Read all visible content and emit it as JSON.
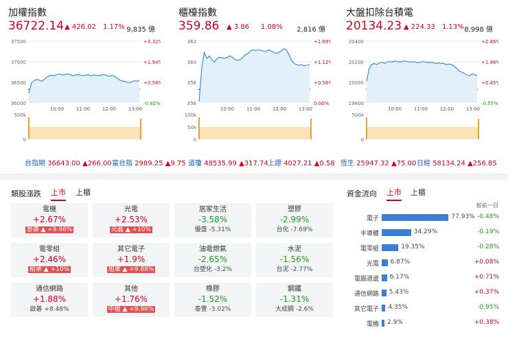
{
  "panels": [
    {
      "title": "加權指數",
      "price": "36722.14",
      "change": "▲ 426.02",
      "pct": "1.17%",
      "volume": "9,835 億",
      "left_ticks": [
        "37500",
        "37000",
        "36500",
        "36000"
      ],
      "right_ticks": [
        "+3.32%",
        "+1.94%",
        "+0.56%",
        "-0.82%"
      ],
      "time_ticks": [
        "10:00",
        "11:00",
        "12:00",
        "13:00"
      ],
      "vol_ticks": [
        "500k",
        "0"
      ],
      "line": [
        0.16,
        0.32,
        0.36,
        0.38,
        0.37,
        0.35,
        0.38,
        0.42,
        0.44,
        0.45,
        0.44,
        0.46,
        0.47,
        0.45,
        0.46,
        0.47,
        0.46,
        0.44,
        0.45,
        0.46,
        0.45,
        0.44,
        0.45,
        0.46,
        0.44,
        0.45,
        0.45,
        0.44,
        0.45,
        0.46,
        0.45,
        0.43,
        0.44,
        0.44,
        0.41,
        0.38,
        0.36,
        0.35,
        0.34,
        0.33,
        0.34,
        0.36,
        0.35,
        0.37
      ]
    },
    {
      "title": "櫃檯指數",
      "price": "359.86",
      "change": "▲ 3.86",
      "pct": "1.08%",
      "volume": "2,816 億",
      "left_ticks": [
        "362",
        "360",
        "358",
        "356"
      ],
      "right_ticks": [
        "+1.69%",
        "+1.12%",
        "+0.56%",
        "0.00%"
      ],
      "time_ticks": [
        "10:00",
        "11:00",
        "12:00",
        "13:00"
      ],
      "vol_ticks": [
        "100k",
        "50k",
        "0"
      ],
      "line": [
        0.02,
        0.55,
        0.82,
        0.72,
        0.76,
        0.7,
        0.66,
        0.72,
        0.74,
        0.73,
        0.72,
        0.74,
        0.76,
        0.74,
        0.7,
        0.69,
        0.7,
        0.74,
        0.78,
        0.8,
        0.84,
        0.86,
        0.85,
        0.86,
        0.85,
        0.84,
        0.83,
        0.86,
        0.84,
        0.82,
        0.8,
        0.82,
        0.84,
        0.88,
        0.86,
        0.78,
        0.68,
        0.64,
        0.62,
        0.61,
        0.62,
        0.6,
        0.61,
        0.62
      ]
    },
    {
      "title": "大盤扣除台積電",
      "price": "20134.23",
      "change": "▲ 224.33",
      "pct": "1.13%",
      "volume": "8,998 億",
      "left_ticks": [
        "20400",
        "20200",
        "20000",
        "19800"
      ],
      "right_ticks": [
        "+2.46%",
        "+1.46%",
        "+0.45%",
        "-0.55%"
      ],
      "time_ticks": [
        "10:00",
        "11:00",
        "12:00",
        "13:00"
      ],
      "vol_ticks": [
        "500k",
        "0"
      ],
      "line": [
        0.35,
        0.56,
        0.62,
        0.64,
        0.62,
        0.65,
        0.66,
        0.64,
        0.66,
        0.67,
        0.66,
        0.68,
        0.67,
        0.66,
        0.67,
        0.68,
        0.67,
        0.66,
        0.67,
        0.66,
        0.65,
        0.66,
        0.67,
        0.66,
        0.65,
        0.66,
        0.65,
        0.64,
        0.65,
        0.64,
        0.64,
        0.62,
        0.63,
        0.62,
        0.6,
        0.56,
        0.52,
        0.5,
        0.48,
        0.45,
        0.44,
        0.47,
        0.46,
        0.44
      ]
    }
  ],
  "ticker": [
    {
      "name": "台指期",
      "value": "36643.00 ▲266.00"
    },
    {
      "name": "富台指",
      "value": "2989.25 ▲9.75"
    },
    {
      "name": "道瓊",
      "value": "48535.99 ▲317.74"
    },
    {
      "name": "上證",
      "value": "4027.21 ▲0.58"
    },
    {
      "name": "恆生",
      "value": "25947.32 ▲75.00"
    },
    {
      "name": "日經",
      "value": "58134.24 ▲256.85"
    }
  ],
  "sectors": {
    "heading": "類股漲跌",
    "tabs": [
      "上市",
      "上櫃"
    ],
    "tiles": [
      {
        "name": "電機",
        "pct": "+2.67%",
        "stock": "恩德",
        "spct": "▲ +9.96%",
        "dir": "up",
        "badge": true
      },
      {
        "name": "光電",
        "pct": "+2.53%",
        "stock": "元晶",
        "spct": "▲ +10%",
        "dir": "up",
        "badge": true
      },
      {
        "name": "居家生活",
        "pct": "-3.58%",
        "stock": "優盛",
        "spct": "-5.31%",
        "dir": "down",
        "badge": false
      },
      {
        "name": "塑膠",
        "pct": "-2.99%",
        "stock": "台化",
        "spct": "-7.69%",
        "dir": "down",
        "badge": false
      },
      {
        "name": "電零組",
        "pct": "+2.46%",
        "stock": "柏承",
        "spct": "▲ +10%",
        "dir": "up",
        "badge": true
      },
      {
        "name": "其它電子",
        "pct": "+1.9%",
        "stock": "旭軍",
        "spct": "▲ +9.88%",
        "dir": "up",
        "badge": true
      },
      {
        "name": "油電燃氣",
        "pct": "-2.65%",
        "stock": "台塑化",
        "spct": "-3.2%",
        "dir": "down",
        "badge": false
      },
      {
        "name": "水泥",
        "pct": "-1.56%",
        "stock": "台泥",
        "spct": "-2.77%",
        "dir": "down",
        "badge": false
      },
      {
        "name": "通信網路",
        "pct": "+1.88%",
        "stock": "啟碁",
        "spct": "+8.48%",
        "dir": "up",
        "badge": false
      },
      {
        "name": "其他",
        "pct": "+1.76%",
        "stock": "中租",
        "spct": "▲ +9.96%",
        "dir": "up",
        "badge": true
      },
      {
        "name": "橡膠",
        "pct": "-1.52%",
        "stock": "泰豐",
        "spct": "-3.02%",
        "dir": "down",
        "badge": false
      },
      {
        "name": "鋼鐵",
        "pct": "-1.31%",
        "stock": "大成鋼",
        "spct": "-2.6%",
        "dir": "down",
        "badge": false
      }
    ]
  },
  "flow": {
    "heading": "資金流向",
    "tabs": [
      "上市",
      "上櫃"
    ],
    "col_header": "較前一日",
    "rows": [
      {
        "name": "電子",
        "share": "77.93%",
        "value": 77.93,
        "change": "-0.48%",
        "dir": "down"
      },
      {
        "name": "半導體",
        "share": "34.29%",
        "value": 34.29,
        "change": "-0.19%",
        "dir": "down"
      },
      {
        "name": "電零組",
        "share": "19.35%",
        "value": 19.35,
        "change": "-0.28%",
        "dir": "down"
      },
      {
        "name": "光電",
        "share": "6.87%",
        "value": 6.87,
        "change": "+0.08%",
        "dir": "up"
      },
      {
        "name": "電腦週邊",
        "share": "6.17%",
        "value": 6.17,
        "change": "+0.71%",
        "dir": "up"
      },
      {
        "name": "通信網路",
        "share": "5.43%",
        "value": 5.43,
        "change": "+0.37%",
        "dir": "up"
      },
      {
        "name": "其它電子",
        "share": "4.35%",
        "value": 4.35,
        "change": "-0.95%",
        "dir": "down"
      },
      {
        "name": "電機",
        "share": "2.9%",
        "value": 2.9,
        "change": "+0.38%",
        "dir": "up"
      }
    ]
  },
  "colors": {
    "up": "#d0021b",
    "down": "#1a9b1a",
    "line": "#3a8fd8",
    "fill": "#e3f0fb",
    "volume": "#f0a030",
    "volume_fill": "#fbe3b8"
  }
}
